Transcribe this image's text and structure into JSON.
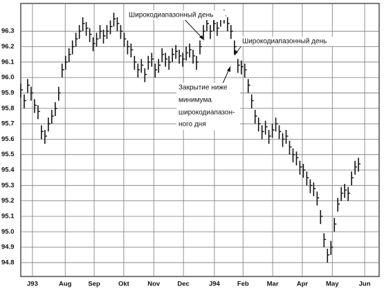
{
  "chart_data": {
    "type": "ohlc",
    "color": "#111111",
    "grid": true,
    "x": [
      0,
      1,
      2,
      3,
      4,
      5,
      6,
      7,
      8,
      9,
      10,
      11,
      12,
      13,
      14,
      15,
      16,
      17,
      18,
      19,
      20,
      21,
      22,
      23,
      24,
      25,
      26,
      27,
      28,
      29,
      30,
      31,
      32,
      33,
      34,
      35,
      36,
      37,
      38,
      39,
      40,
      41,
      42,
      43,
      44,
      45,
      46,
      47,
      48,
      49,
      50,
      51,
      52,
      53,
      54,
      55,
      56,
      57,
      58,
      59,
      60,
      61,
      62,
      63,
      64,
      65,
      66,
      67,
      68,
      69,
      70,
      71,
      72,
      73,
      74,
      75,
      76,
      77,
      78,
      79,
      80,
      81,
      82,
      83,
      84,
      85,
      86,
      87,
      88,
      89,
      90,
      91,
      92,
      93,
      94,
      95,
      96,
      97,
      98
    ],
    "high": [
      95.96,
      95.89,
      95.99,
      95.94,
      95.86,
      95.82,
      95.69,
      95.66,
      95.74,
      95.79,
      95.84,
      95.94,
      96.09,
      96.14,
      96.19,
      96.24,
      96.29,
      96.34,
      96.39,
      96.36,
      96.32,
      96.26,
      96.29,
      96.34,
      96.31,
      96.34,
      96.37,
      96.42,
      96.39,
      96.34,
      96.29,
      96.24,
      96.22,
      96.14,
      96.09,
      96.12,
      96.06,
      96.14,
      96.16,
      96.09,
      96.12,
      96.19,
      96.16,
      96.14,
      96.19,
      96.21,
      96.18,
      96.16,
      96.2,
      96.22,
      96.18,
      96.14,
      96.24,
      96.34,
      96.39,
      96.34,
      96.39,
      96.36,
      96.42,
      96.44,
      96.39,
      96.34,
      96.24,
      96.12,
      96.11,
      96.09,
      95.99,
      95.89,
      95.79,
      95.74,
      95.69,
      95.72,
      95.66,
      95.7,
      95.74,
      95.69,
      95.64,
      95.66,
      95.59,
      95.54,
      95.52,
      95.46,
      95.44,
      95.39,
      95.34,
      95.32,
      95.26,
      95.14,
      94.99,
      94.89,
      94.94,
      95.09,
      95.22,
      95.29,
      95.31,
      95.29,
      95.39,
      95.46,
      95.48
    ],
    "low": [
      95.87,
      95.8,
      95.9,
      95.85,
      95.77,
      95.73,
      95.6,
      95.57,
      95.65,
      95.7,
      95.75,
      95.85,
      96.0,
      96.05,
      96.1,
      96.15,
      96.2,
      96.25,
      96.3,
      96.27,
      96.23,
      96.17,
      96.2,
      96.25,
      96.22,
      96.25,
      96.28,
      96.33,
      96.3,
      96.25,
      96.2,
      96.15,
      96.13,
      96.05,
      96.0,
      96.03,
      95.97,
      96.05,
      96.07,
      96.0,
      96.03,
      96.1,
      96.07,
      96.05,
      96.1,
      96.12,
      96.09,
      96.07,
      96.11,
      96.13,
      96.09,
      96.05,
      96.15,
      96.25,
      96.3,
      96.25,
      96.3,
      96.27,
      96.33,
      96.35,
      96.3,
      96.25,
      96.15,
      96.03,
      96.02,
      96.0,
      95.9,
      95.8,
      95.7,
      95.65,
      95.6,
      95.63,
      95.57,
      95.61,
      95.65,
      95.6,
      95.55,
      95.57,
      95.5,
      95.45,
      95.43,
      95.37,
      95.35,
      95.3,
      95.25,
      95.23,
      95.17,
      95.05,
      94.9,
      94.8,
      94.85,
      95.0,
      95.13,
      95.2,
      95.22,
      95.2,
      95.3,
      95.37,
      95.39
    ],
    "close": [
      95.92,
      95.85,
      95.95,
      95.9,
      95.82,
      95.78,
      95.65,
      95.62,
      95.7,
      95.75,
      95.8,
      95.9,
      96.05,
      96.1,
      96.15,
      96.2,
      96.25,
      96.3,
      96.35,
      96.32,
      96.28,
      96.22,
      96.25,
      96.3,
      96.27,
      96.3,
      96.33,
      96.38,
      96.35,
      96.3,
      96.25,
      96.2,
      96.18,
      96.1,
      96.05,
      96.08,
      96.02,
      96.1,
      96.12,
      96.05,
      96.08,
      96.15,
      96.12,
      96.1,
      96.15,
      96.17,
      96.14,
      96.12,
      96.16,
      96.18,
      96.14,
      96.1,
      96.2,
      96.3,
      96.35,
      96.3,
      96.35,
      96.32,
      96.38,
      96.4,
      96.35,
      96.3,
      96.2,
      96.08,
      96.07,
      96.05,
      95.95,
      95.85,
      95.75,
      95.7,
      95.65,
      95.68,
      95.62,
      95.66,
      95.7,
      95.65,
      95.6,
      95.62,
      95.55,
      95.5,
      95.48,
      95.42,
      95.4,
      95.35,
      95.3,
      95.28,
      95.22,
      95.1,
      94.95,
      94.85,
      94.9,
      95.05,
      95.18,
      95.25,
      95.27,
      95.25,
      95.35,
      95.42,
      95.44
    ],
    "xlim": [
      0,
      104
    ],
    "xticks": [
      {
        "value": 3.4,
        "label": "J93"
      },
      {
        "value": 12.9,
        "label": "Aug"
      },
      {
        "value": 21.3,
        "label": "Sep"
      },
      {
        "value": 29.9,
        "label": "Okt"
      },
      {
        "value": 38.6,
        "label": "Nov"
      },
      {
        "value": 47.2,
        "label": "Dec"
      },
      {
        "value": 56.2,
        "label": "J94"
      },
      {
        "value": 64.5,
        "label": "Feb"
      },
      {
        "value": 73.1,
        "label": "Mar"
      },
      {
        "value": 81.7,
        "label": "Apr"
      },
      {
        "value": 90.4,
        "label": "May"
      },
      {
        "value": 99.8,
        "label": "Jun"
      }
    ],
    "ylim": [
      94.71,
      96.48
    ],
    "yticks": [
      94.8,
      94.9,
      {
        "value": 95,
        "label": "95.0"
      },
      95.1,
      95.2,
      95.3,
      95.4,
      95.5,
      95.6,
      95.7,
      95.8,
      95.9,
      {
        "value": 96,
        "label": "96.0"
      },
      96.1,
      96.2,
      96.3
    ],
    "annotations": [
      {
        "text": "Широкодиапазонный день"
      },
      {
        "text": "Широкодиапазонный день"
      },
      {
        "lines": [
          "Закрытие ниже",
          "минимума",
          "широкодиапазон-",
          "ного дня"
        ]
      }
    ]
  }
}
